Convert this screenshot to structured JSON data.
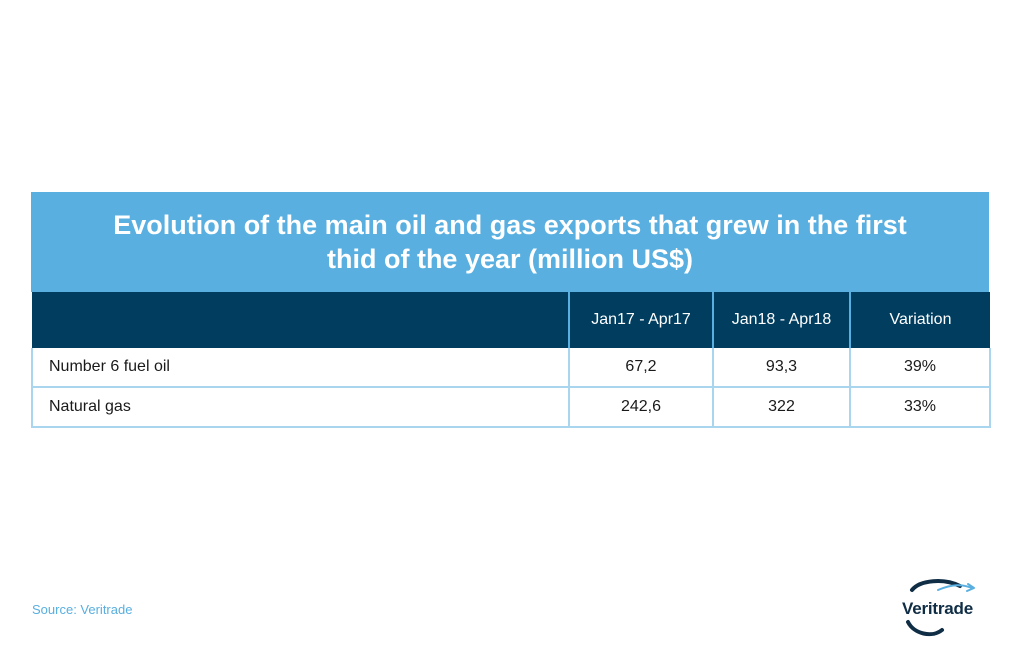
{
  "chart_data": {
    "type": "table",
    "title": "Evolution of the main oil and gas exports that grew in the first thid of the year (million US$)",
    "columns": [
      "",
      "Jan17 - Apr17",
      "Jan18 - Apr18",
      "Variation"
    ],
    "rows": [
      {
        "label": "Number 6 fuel oil",
        "jan17_apr17": "67,2",
        "jan18_apr18": "93,3",
        "variation": "39%"
      },
      {
        "label": "Natural gas",
        "jan17_apr17": "242,6",
        "jan18_apr18": "322",
        "variation": "33%"
      }
    ]
  },
  "footer": {
    "source": "Source: Veritrade",
    "logo_text": "Veritrade"
  },
  "colors": {
    "title_band": "#58afe0",
    "header_band": "#003d5f",
    "row_border": "#a9d5ee",
    "source_text": "#58afe0"
  }
}
